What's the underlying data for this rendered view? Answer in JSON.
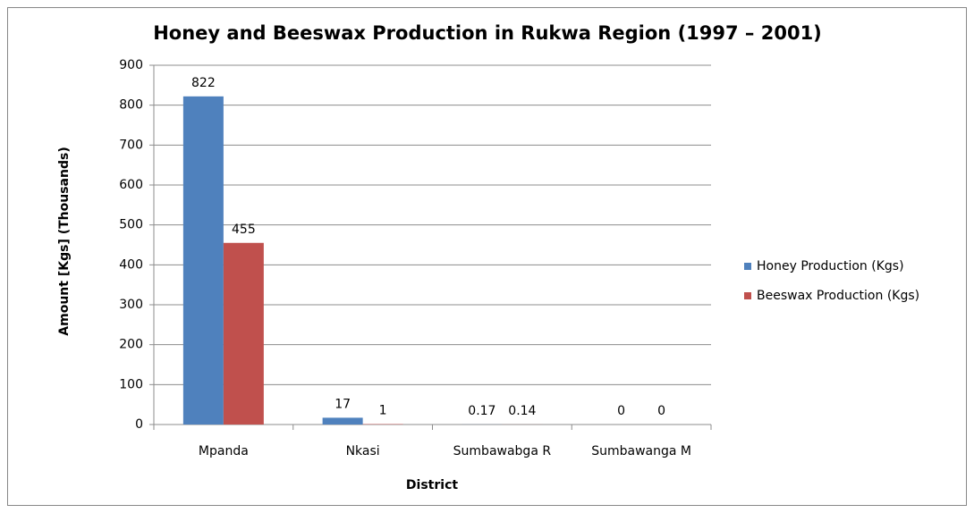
{
  "chart_data": {
    "type": "bar",
    "title": "Honey and Beeswax Production in Rukwa Region (1997 – 2001)",
    "x_label": "District",
    "y_label": "Amount [Kgs]  (Thousands)",
    "categories": [
      "Mpanda",
      "Nkasi",
      "Sumbawabga R",
      "Sumbawanga M"
    ],
    "series": [
      {
        "name": "Honey  Production (Kgs)",
        "color": "#4f81bd",
        "values": [
          822,
          17,
          0.17,
          0
        ]
      },
      {
        "name": "Beeswax  Production (Kgs)",
        "color": "#c0504d",
        "values": [
          455,
          1,
          0.14,
          0
        ]
      }
    ],
    "ylim": [
      0,
      900
    ],
    "yticks": [
      0,
      100,
      200,
      300,
      400,
      500,
      600,
      700,
      800,
      900
    ],
    "grid": true,
    "legend": "right"
  }
}
